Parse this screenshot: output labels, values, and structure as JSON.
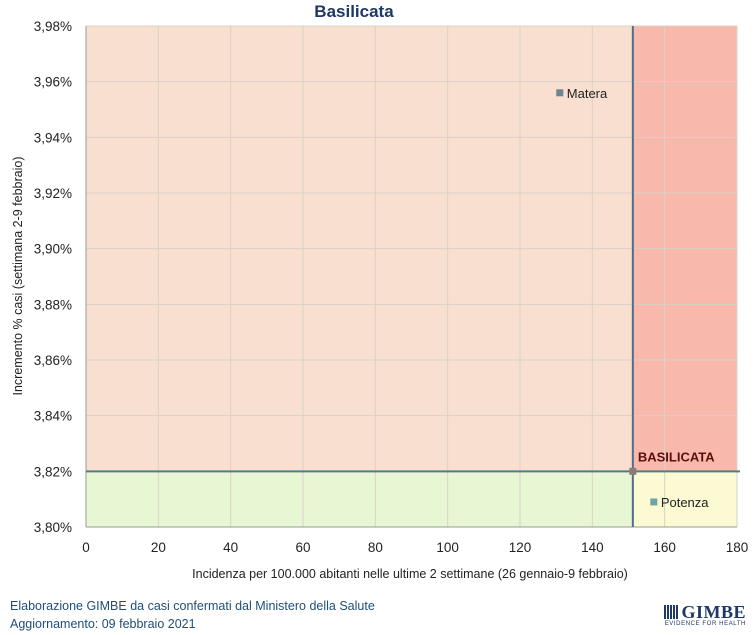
{
  "chart_data": {
    "type": "scatter",
    "title": "Basilicata",
    "xlabel": "Incidenza per 100.000 abitanti nelle ultime 2 settimane (26 gennaio-9 febbraio)",
    "ylabel": "Incremento % casi (settimana 2-9 febbraio)",
    "xlim": [
      0,
      180
    ],
    "ylim": [
      3.8,
      3.98
    ],
    "x_ticks": [
      "0",
      "20",
      "40",
      "60",
      "80",
      "100",
      "120",
      "140",
      "160",
      "180"
    ],
    "y_ticks": [
      "3,80%",
      "3,82%",
      "3,84%",
      "3,86%",
      "3,88%",
      "3,90%",
      "3,92%",
      "3,94%",
      "3,96%",
      "3,98%"
    ],
    "grid": true,
    "reference_lines": {
      "x": 151.2,
      "y": 3.82
    },
    "quadrant_colors": {
      "top_left": "#f9dfcf",
      "top_right": "#f8b9ac",
      "bottom_left": "#e8f7d3",
      "bottom_right": "#fbfad2"
    },
    "points": [
      {
        "label": "Matera",
        "x": 131,
        "y": 3.956,
        "color": "#6f8391"
      },
      {
        "label": "Potenza",
        "x": 157,
        "y": 3.809,
        "color": "#6fa3a6"
      },
      {
        "label": "BASILICATA",
        "x": 151.2,
        "y": 3.82,
        "color": "#8c7a7a"
      }
    ]
  },
  "footer": {
    "source": "Elaborazione GIMBE da casi confermati dal Ministero della Salute",
    "update": "Aggiornamento: 09 febbraio 2021"
  },
  "logo": {
    "name": "GIMBE",
    "tagline": "EVIDENCE FOR HEALTH"
  }
}
